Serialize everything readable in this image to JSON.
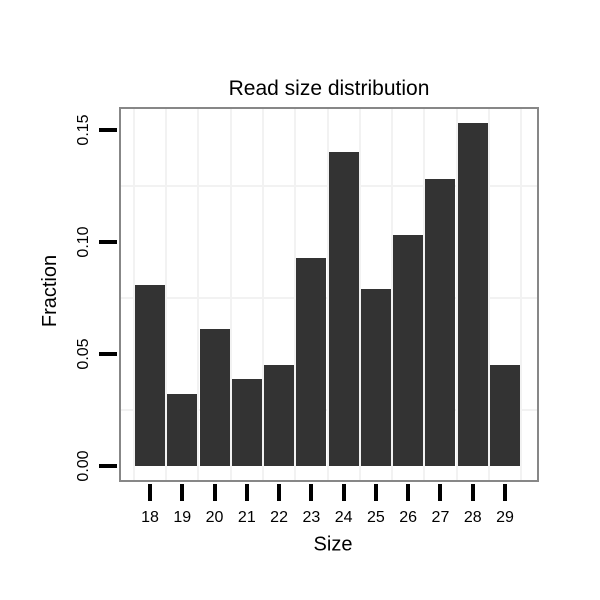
{
  "page": {
    "background": "#ffffff"
  },
  "chart_data": {
    "type": "bar",
    "title": "Read size distribution",
    "xlabel": "Size",
    "ylabel": "Fraction",
    "categories": [
      "18",
      "19",
      "20",
      "21",
      "22",
      "23",
      "24",
      "25",
      "26",
      "27",
      "28",
      "29"
    ],
    "values": [
      0.081,
      0.032,
      0.061,
      0.039,
      0.045,
      0.093,
      0.14,
      0.079,
      0.103,
      0.128,
      0.153,
      0.045
    ],
    "y_tick_labels": [
      "0.00",
      "0.05",
      "0.10",
      "0.15"
    ],
    "y_tick_values": [
      0.0,
      0.05,
      0.1,
      0.15
    ],
    "minor_y_gridlines": [
      0.025,
      0.075,
      0.125
    ],
    "ylim": [
      -0.006,
      0.159
    ],
    "grid": "minor gridlines only, light gray",
    "legend": "none",
    "bar_color": "#333333",
    "panel_border_color": "#878787",
    "gridline_color": "#f2f2f2",
    "tick_color": "#000000",
    "text_color": "#000000"
  }
}
